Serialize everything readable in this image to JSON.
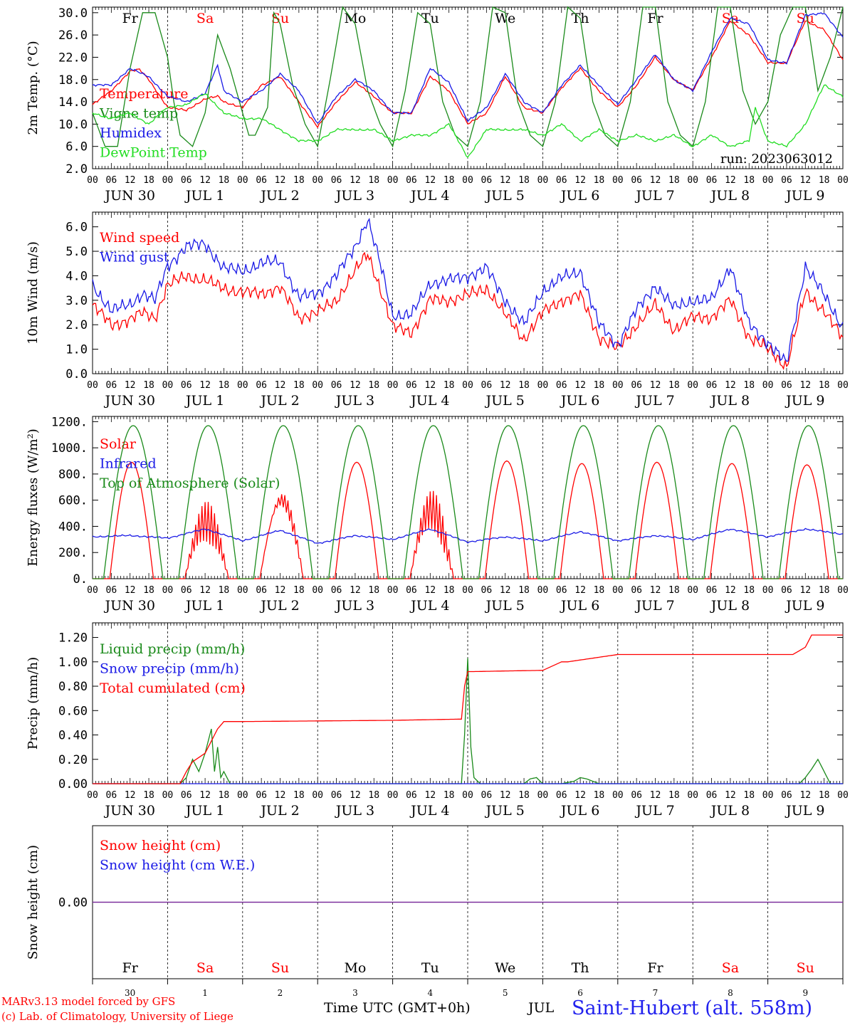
{
  "header": {
    "run_label": "run: 2023063012"
  },
  "footer": {
    "model_credit": "MARv3.13 model forced by GFS",
    "lab_credit": "(c) Lab. of Climatology, University of Liege",
    "x_axis_label": "Time UTC (GMT+0h)",
    "month_label": "JUL",
    "station": "Saint-Hubert (alt. 558m)"
  },
  "colors": {
    "red": "#ff0000",
    "green": "#1a8a1a",
    "blue": "#1a1ae6",
    "lightgreen": "#22dd22",
    "purple": "#7a2a9a"
  },
  "days": {
    "weekday": [
      "Fr",
      "Sa",
      "Su",
      "Mo",
      "Tu",
      "We",
      "Th",
      "Fr",
      "Sa",
      "Su"
    ],
    "weekend": [
      false,
      true,
      true,
      false,
      false,
      false,
      false,
      false,
      true,
      true
    ],
    "date_label": [
      "JUN 30",
      "JUL  1",
      "JUL  2",
      "JUL  3",
      "JUL  4",
      "JUL  5",
      "JUL  6",
      "JUL  7",
      "JUL  8",
      "JUL  9"
    ],
    "day_number": [
      "30",
      "1",
      "2",
      "3",
      "4",
      "5",
      "6",
      "7",
      "8",
      "9"
    ],
    "hour_ticks": [
      "00",
      "06",
      "12",
      "18"
    ],
    "final_tick": "00"
  },
  "chart_data": [
    {
      "type": "line",
      "ylabel": "2m Temp. (°C)",
      "ylim": [
        2,
        31
      ],
      "yticks": [
        "2.0",
        "6.0",
        "10.0",
        "14.0",
        "18.0",
        "22.0",
        "26.0",
        "30.0"
      ],
      "x_unit": "hours since 2023-06-30 00 UTC",
      "series": [
        {
          "name": "Temperature",
          "color": "red",
          "x": [
            0,
            6,
            12,
            15,
            18,
            24,
            30,
            36,
            40,
            42,
            48,
            54,
            60,
            66,
            72,
            78,
            84,
            90,
            96,
            102,
            108,
            114,
            120,
            126,
            132,
            138,
            144,
            150,
            156,
            162,
            168,
            174,
            180,
            186,
            192,
            198,
            204,
            210,
            216,
            222,
            228,
            234,
            240
          ],
          "y": [
            13.5,
            16,
            19.5,
            19.8,
            18,
            13,
            12.5,
            14.5,
            15,
            14,
            13,
            17,
            18.5,
            14,
            9.5,
            14,
            17.5,
            15,
            12,
            12,
            18.5,
            16,
            10,
            12,
            18.5,
            13,
            12,
            16.5,
            20,
            16,
            13,
            17,
            22,
            18,
            16,
            22,
            28.5,
            26,
            21,
            21,
            28.5,
            27,
            21.5
          ]
        },
        {
          "name": "Vigne temp",
          "color": "green",
          "x": [
            0,
            4,
            8,
            12,
            16,
            20,
            24,
            26,
            28,
            32,
            36,
            40,
            44,
            48,
            50,
            52,
            56,
            58,
            60,
            64,
            68,
            72,
            76,
            80,
            84,
            88,
            92,
            96,
            100,
            104,
            108,
            112,
            116,
            120,
            124,
            128,
            132,
            136,
            140,
            144,
            148,
            152,
            156,
            160,
            164,
            168,
            172,
            176,
            180,
            184,
            188,
            192,
            196,
            200,
            204,
            208,
            212,
            216,
            220,
            224,
            228,
            232,
            236,
            240
          ],
          "y": [
            12,
            6,
            6,
            20,
            30,
            30,
            22,
            14,
            8,
            6,
            12,
            26,
            20,
            12,
            8,
            8,
            13,
            30,
            28,
            17,
            10,
            6,
            18,
            31,
            28,
            16,
            10,
            6,
            16,
            30,
            28,
            14,
            8,
            6,
            14,
            31,
            30,
            14,
            8,
            6,
            14,
            31,
            29,
            14,
            8,
            6,
            14,
            31,
            31,
            14,
            8,
            6,
            14,
            31,
            31,
            16,
            10,
            14,
            26,
            31,
            31,
            16,
            22,
            31
          ]
        },
        {
          "name": "Humidex",
          "color": "blue",
          "x": [
            0,
            6,
            12,
            18,
            24,
            30,
            36,
            40,
            42,
            48,
            54,
            60,
            66,
            72,
            78,
            84,
            90,
            96,
            102,
            108,
            114,
            120,
            126,
            132,
            138,
            144,
            150,
            156,
            162,
            168,
            174,
            180,
            186,
            192,
            198,
            204,
            210,
            216,
            222,
            228,
            234,
            240
          ],
          "y": [
            17,
            17,
            20,
            18.5,
            15,
            14,
            15.5,
            20.5,
            16,
            14,
            16,
            19,
            16,
            10,
            15,
            18,
            16,
            12,
            12,
            20,
            17.5,
            10.5,
            13,
            19,
            14,
            12,
            17,
            20.5,
            17,
            13.5,
            18,
            22.5,
            18,
            16,
            23,
            29,
            28,
            21.5,
            21,
            29.5,
            30,
            25.5
          ]
        },
        {
          "name": "DewPoint Temp",
          "color": "lightgreen",
          "x": [
            0,
            6,
            12,
            18,
            24,
            30,
            36,
            42,
            48,
            54,
            60,
            66,
            72,
            78,
            84,
            90,
            96,
            102,
            108,
            114,
            120,
            126,
            132,
            138,
            144,
            150,
            156,
            162,
            168,
            174,
            180,
            186,
            192,
            198,
            204,
            210,
            212,
            216,
            222,
            228,
            234,
            240
          ],
          "y": [
            12,
            11,
            12,
            10,
            13,
            13.5,
            15.5,
            12,
            11,
            11,
            9,
            7,
            7,
            9,
            9,
            9,
            7,
            8,
            8,
            10,
            4,
            9,
            9,
            9,
            8,
            10,
            7,
            9,
            7,
            8,
            7,
            8,
            6,
            8,
            6,
            7,
            13,
            7,
            6,
            10,
            17,
            15
          ]
        }
      ]
    },
    {
      "type": "line",
      "ylabel": "10m Wind (m/s)",
      "ylim": [
        0,
        6.6
      ],
      "yticks": [
        "0.0",
        "1.0",
        "2.0",
        "3.0",
        "4.0",
        "5.0",
        "6.0"
      ],
      "ref_line": 5.0,
      "series": [
        {
          "name": "Wind speed",
          "color": "red",
          "x": [
            0,
            6,
            12,
            16,
            20,
            24,
            30,
            36,
            42,
            48,
            54,
            60,
            66,
            72,
            78,
            84,
            88,
            92,
            96,
            102,
            108,
            114,
            120,
            126,
            132,
            138,
            144,
            150,
            156,
            162,
            168,
            174,
            180,
            186,
            192,
            198,
            204,
            210,
            216,
            222,
            228,
            234,
            240
          ],
          "y": [
            2.8,
            2.0,
            2.2,
            2.5,
            2.3,
            3.6,
            4.0,
            3.8,
            3.5,
            3.3,
            3.3,
            3.5,
            2.3,
            2.5,
            3.0,
            4.2,
            4.9,
            3.5,
            1.9,
            1.7,
            3.0,
            3.0,
            3.2,
            3.5,
            2.4,
            1.4,
            2.5,
            3.0,
            3.2,
            1.5,
            1.0,
            2.0,
            2.8,
            1.8,
            2.3,
            2.3,
            3.0,
            1.5,
            1.0,
            0.3,
            3.3,
            2.6,
            1.4
          ]
        },
        {
          "name": "Wind gust",
          "color": "blue",
          "x": [
            0,
            6,
            12,
            16,
            20,
            24,
            30,
            36,
            42,
            48,
            54,
            60,
            66,
            72,
            78,
            84,
            88,
            92,
            96,
            102,
            108,
            114,
            120,
            126,
            132,
            138,
            144,
            150,
            156,
            162,
            168,
            174,
            180,
            186,
            192,
            198,
            204,
            210,
            216,
            222,
            228,
            234,
            240
          ],
          "y": [
            3.6,
            2.6,
            2.8,
            3.3,
            3.0,
            4.4,
            5.2,
            5.3,
            4.3,
            4.2,
            4.5,
            4.6,
            3.1,
            3.3,
            4.0,
            5.2,
            6.3,
            4.5,
            2.4,
            2.4,
            3.7,
            3.8,
            4.0,
            4.3,
            3.0,
            2.0,
            3.4,
            3.9,
            4.2,
            2.0,
            1.2,
            2.6,
            3.6,
            2.7,
            3.0,
            3.0,
            4.4,
            2.0,
            1.3,
            0.4,
            4.4,
            3.2,
            1.9
          ]
        }
      ]
    },
    {
      "type": "line",
      "ylabel": "Energy fluxes (W/m²)",
      "ylim": [
        0,
        1240
      ],
      "yticks": [
        "0.",
        "200.",
        "400.",
        "600.",
        "800.",
        "1000.",
        "1200."
      ],
      "series": [
        {
          "name": "Solar",
          "color": "red",
          "peak_hour": 12.5,
          "half_width": 7,
          "peaks": [
            890,
            590,
            720,
            890,
            680,
            900,
            880,
            890,
            880,
            870
          ]
        },
        {
          "name": "Infrared",
          "color": "blue",
          "x": [
            0,
            12,
            24,
            36,
            48,
            60,
            72,
            84,
            96,
            108,
            120,
            132,
            144,
            156,
            168,
            180,
            192,
            204,
            216,
            228,
            240
          ],
          "y": [
            320,
            330,
            310,
            380,
            290,
            370,
            270,
            330,
            300,
            380,
            280,
            320,
            290,
            360,
            290,
            330,
            300,
            380,
            320,
            380,
            340
          ]
        },
        {
          "name": "Top of Atmosphere (Solar)",
          "color": "green",
          "peak_hour": 13,
          "half_width": 9.5,
          "peaks": [
            1170,
            1170,
            1170,
            1170,
            1170,
            1170,
            1170,
            1170,
            1170,
            1170
          ]
        }
      ]
    },
    {
      "type": "line",
      "ylabel": "Precip (mm/h)",
      "ylim": [
        0,
        1.32
      ],
      "yticks": [
        "0.00",
        "0.20",
        "0.40",
        "0.60",
        "0.80",
        "1.00",
        "1.20"
      ],
      "series": [
        {
          "name": "Liquid precip (mm/h)",
          "color": "green",
          "x": [
            0,
            28,
            30,
            32,
            34,
            36,
            38,
            39,
            40,
            41,
            42,
            44,
            46,
            48,
            118,
            119,
            120,
            121,
            122,
            124,
            126,
            138,
            140,
            142,
            144,
            150,
            154,
            156,
            158,
            162,
            226,
            228,
            230,
            232,
            234,
            236,
            240
          ],
          "y": [
            0,
            0,
            0.05,
            0.2,
            0.1,
            0.25,
            0.45,
            0.1,
            0.3,
            0.05,
            0.1,
            0,
            0,
            0,
            0,
            0.4,
            1.03,
            0.3,
            0.05,
            0,
            0,
            0,
            0.04,
            0.05,
            0,
            0,
            0.02,
            0.05,
            0.04,
            0,
            0,
            0.05,
            0.12,
            0.2,
            0.1,
            0,
            0
          ]
        },
        {
          "name": "Snow precip (mm/h)",
          "color": "blue",
          "x": [
            0,
            240
          ],
          "y": [
            0,
            0
          ]
        },
        {
          "name": "Total cumulated (cm)",
          "color": "red",
          "x": [
            0,
            28,
            30,
            32,
            36,
            38,
            40,
            42,
            48,
            72,
            96,
            118,
            119,
            120,
            122,
            132,
            144,
            150,
            152,
            168,
            216,
            224,
            228,
            230,
            240
          ],
          "y": [
            0,
            0,
            0.1,
            0.18,
            0.25,
            0.35,
            0.45,
            0.51,
            0.51,
            0.515,
            0.52,
            0.53,
            0.8,
            0.92,
            0.92,
            0.925,
            0.93,
            1.0,
            1.0,
            1.06,
            1.06,
            1.06,
            1.12,
            1.22,
            1.22
          ]
        }
      ]
    },
    {
      "type": "line",
      "ylabel": "Snow height (cm)",
      "yticks": [
        "0.00"
      ],
      "series": [
        {
          "name": "Snow height (cm)",
          "color": "red",
          "x": [
            0,
            240
          ],
          "y": [
            0,
            0
          ]
        },
        {
          "name": "Snow height (cm W.E.)",
          "color": "blue",
          "x": [
            0,
            240
          ],
          "y": [
            0,
            0
          ]
        }
      ]
    }
  ]
}
